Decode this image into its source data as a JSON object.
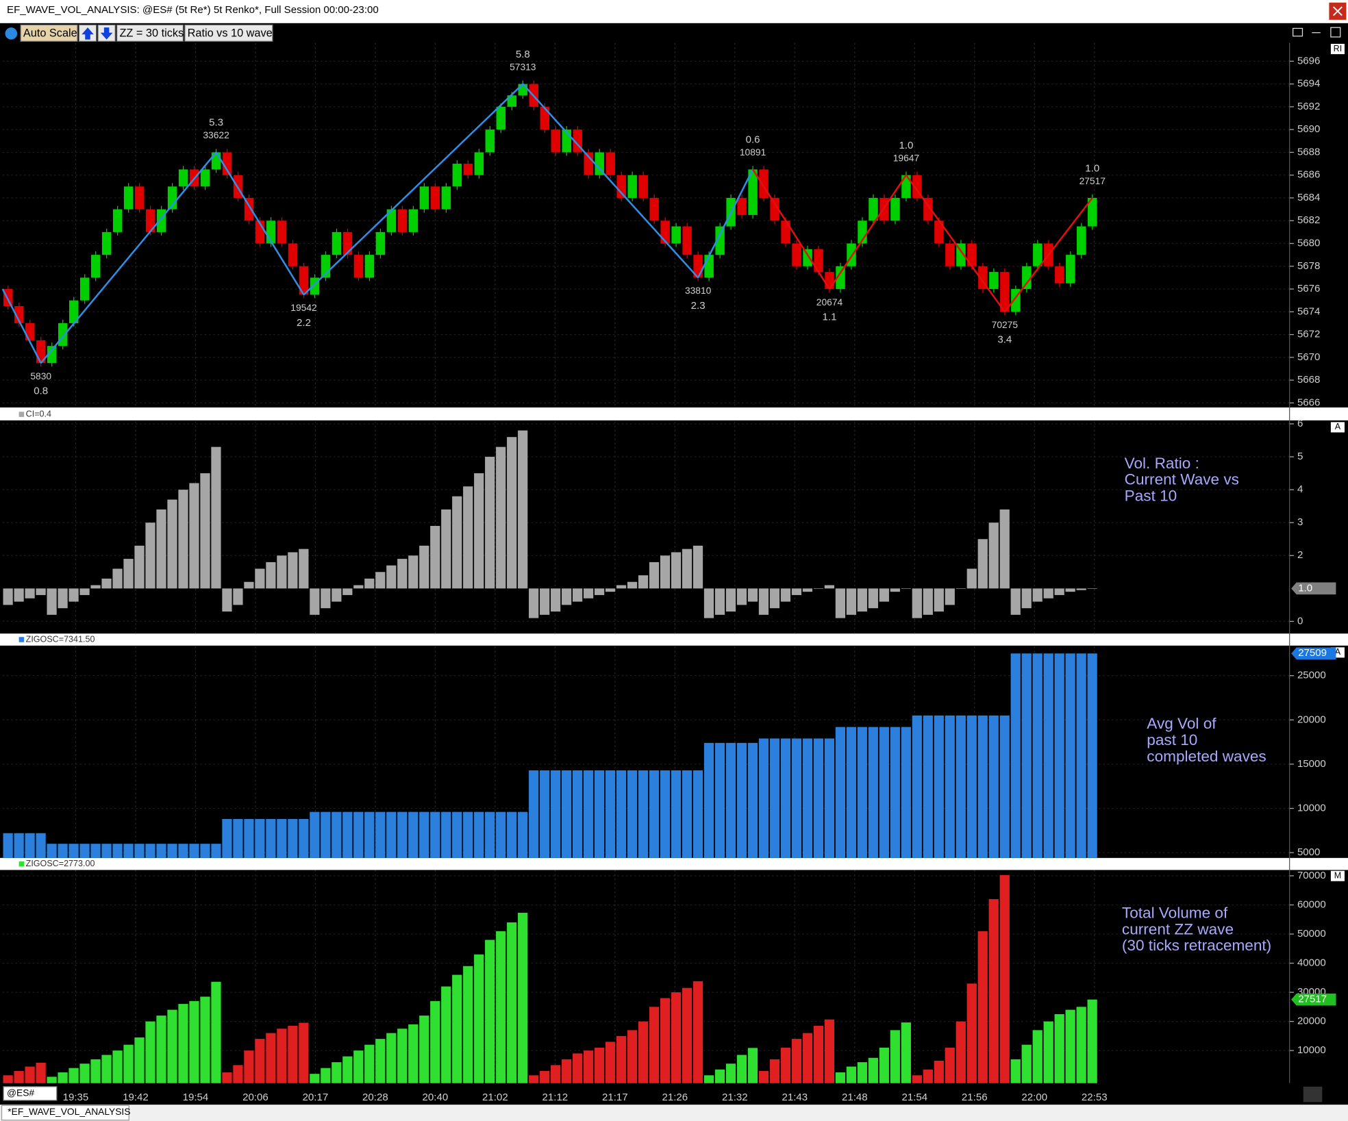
{
  "window": {
    "title": "EF_WAVE_VOL_ANALYSIS: @ES# (5t Re*) 5t Renko*, Full Session 00:00-23:00"
  },
  "toolbar": {
    "buttons": [
      "Auto Scale",
      "ZZ = 30 ticks",
      "Ratio vs 10 wave"
    ]
  },
  "footer": {
    "symbol": "@ES#",
    "tab": "*EF_WAVE_VOL_ANALYSIS"
  },
  "x_labels": [
    "19:35",
    "19:42",
    "19:54",
    "20:06",
    "20:17",
    "20:28",
    "20:40",
    "21:02",
    "21:12",
    "21:17",
    "21:26",
    "21:32",
    "21:43",
    "21:48",
    "21:54",
    "21:56",
    "22:00",
    "22:53"
  ],
  "chart_data": [
    {
      "type": "renko",
      "scale_mode": "RI",
      "up_color": "#00d000",
      "down_color": "#e00000",
      "ylim": [
        5665.6,
        5697.6
      ],
      "yticks": [
        5666,
        5668,
        5670,
        5672,
        5674,
        5676,
        5678,
        5680,
        5682,
        5684,
        5686,
        5688,
        5690,
        5692,
        5694,
        5696
      ],
      "open": 5676,
      "waves": [
        {
          "closes": [
            5674.5,
            5673,
            5671.5,
            5669.5
          ],
          "pivot": 5669.5,
          "volume_label": "5830",
          "ratio_label": "0.8",
          "zigzag_color": "#2f8fe8"
        },
        {
          "closes": [
            5671,
            5673,
            5675,
            5677,
            5679,
            5681,
            5683,
            5685,
            5683,
            5681,
            5683,
            5685,
            5686.5,
            5685,
            5686.5,
            5688
          ],
          "pivot": 5688,
          "volume_label": "33622",
          "ratio_label": "5.3",
          "zigzag_color": "#2f8fe8"
        },
        {
          "closes": [
            5686,
            5684,
            5682,
            5680,
            5682,
            5680,
            5678,
            5675.5
          ],
          "pivot": 5675.5,
          "volume_label": "19542",
          "ratio_label": "2.2",
          "zigzag_color": "#2f8fe8"
        },
        {
          "closes": [
            5677,
            5679,
            5681,
            5679,
            5677,
            5679,
            5681,
            5683,
            5681,
            5683,
            5685,
            5683,
            5685,
            5687,
            5686,
            5688,
            5690,
            5692,
            5693,
            5694
          ],
          "pivot": 5694,
          "volume_label": "57313",
          "ratio_label": "5.8",
          "zigzag_color": "#2f8fe8"
        },
        {
          "closes": [
            5692,
            5690,
            5688,
            5690,
            5688,
            5686,
            5688,
            5686,
            5684,
            5686,
            5684,
            5682,
            5680,
            5681.5,
            5679,
            5677
          ],
          "pivot": 5677,
          "volume_label": "33810",
          "ratio_label": "2.3",
          "zigzag_color": "#2f8fe8"
        },
        {
          "closes": [
            5679,
            5681.5,
            5684,
            5682.5,
            5686.5
          ],
          "pivot": 5686.5,
          "volume_label": "10891",
          "ratio_label": "0.6",
          "zigzag_color": "#2f8fe8"
        },
        {
          "closes": [
            5684,
            5682,
            5680,
            5678,
            5679.5,
            5677.5,
            5676
          ],
          "pivot": 5676,
          "volume_label": "20674",
          "ratio_label": "1.1",
          "zigzag_color": "#e01010"
        },
        {
          "closes": [
            5678,
            5680,
            5682,
            5684,
            5682,
            5684,
            5686
          ],
          "pivot": 5686,
          "volume_label": "19647",
          "ratio_label": "1.0",
          "zigzag_color": "#e01010"
        },
        {
          "closes": [
            5684,
            5682,
            5680,
            5678,
            5680,
            5678,
            5676,
            5677.5,
            5674
          ],
          "pivot": 5674,
          "volume_label": "70275",
          "ratio_label": "3.4",
          "zigzag_color": "#e01010"
        },
        {
          "closes": [
            5676,
            5678,
            5680,
            5678,
            5676.5,
            5679,
            5681.5,
            5684
          ],
          "pivot": 5684,
          "volume_label": "27517",
          "ratio_label": "1.0",
          "zigzag_color": "#e01010"
        }
      ]
    },
    {
      "type": "bar",
      "header": "CI=0.4",
      "scale_mode": "A",
      "note": [
        "Vol. Ratio :",
        "Current Wave vs",
        "Past 10"
      ],
      "ylim": [
        -0.37,
        6.08
      ],
      "yticks": [
        0,
        2,
        3,
        4,
        5,
        6
      ],
      "marker": {
        "value": 1,
        "label": "1.0"
      },
      "marker_color": "#808080",
      "baseline": "marker",
      "segments": [
        {
          "color": "#a6a6a6",
          "values": [
            0.5,
            0.6,
            0.7,
            0.8
          ]
        },
        {
          "color": "#a6a6a6",
          "values": [
            0.2,
            0.4,
            0.6,
            0.8,
            1.1,
            1.3,
            1.6,
            1.9,
            2.3,
            3.0,
            3.4,
            3.7,
            4.0,
            4.2,
            4.5,
            5.3
          ]
        },
        {
          "color": "#a6a6a6",
          "values": [
            0.3,
            0.5,
            1.2,
            1.6,
            1.8,
            2.0,
            2.1,
            2.2
          ]
        },
        {
          "color": "#a6a6a6",
          "values": [
            0.2,
            0.4,
            0.6,
            0.8,
            1.1,
            1.3,
            1.5,
            1.7,
            1.9,
            2.0,
            2.3,
            2.9,
            3.4,
            3.8,
            4.1,
            4.5,
            5.0,
            5.3,
            5.6,
            5.8
          ]
        },
        {
          "color": "#a6a6a6",
          "values": [
            0.1,
            0.2,
            0.3,
            0.5,
            0.6,
            0.7,
            0.8,
            0.9,
            1.1,
            1.2,
            1.4,
            1.8,
            2.0,
            2.1,
            2.2,
            2.3
          ]
        },
        {
          "color": "#a6a6a6",
          "values": [
            0.1,
            0.2,
            0.3,
            0.5,
            0.6
          ]
        },
        {
          "color": "#a6a6a6",
          "values": [
            0.2,
            0.4,
            0.6,
            0.8,
            0.9,
            1.0,
            1.1
          ]
        },
        {
          "color": "#a6a6a6",
          "values": [
            0.1,
            0.2,
            0.3,
            0.4,
            0.6,
            0.9,
            1.0
          ]
        },
        {
          "color": "#a6a6a6",
          "values": [
            0.1,
            0.2,
            0.3,
            0.5,
            1.0,
            1.6,
            2.5,
            3.0,
            3.4
          ]
        },
        {
          "color": "#a6a6a6",
          "values": [
            0.2,
            0.4,
            0.6,
            0.7,
            0.8,
            0.9,
            0.95,
            1.0
          ]
        }
      ]
    },
    {
      "type": "bar",
      "header": "ZIGOSC=7341.50",
      "scale_mode": "A",
      "note": [
        "Avg Vol of",
        "past 10",
        "completed waves"
      ],
      "ylim": [
        4400,
        28300
      ],
      "yticks": [
        5000,
        10000,
        15000,
        20000,
        25000
      ],
      "marker": 27509,
      "marker_color": "#1a78e0",
      "segments": [
        {
          "color": "#2a80dc",
          "values": [
            7200,
            7200,
            7200,
            7200
          ]
        },
        {
          "color": "#2a80dc",
          "values": [
            6000,
            6000,
            6000,
            6000,
            6000,
            6000,
            6000,
            6000,
            6000,
            6000,
            6000,
            6000,
            6000,
            6000,
            6000,
            6000
          ]
        },
        {
          "color": "#2a80dc",
          "values": [
            8800,
            8800,
            8800,
            8800,
            8800,
            8800,
            8800,
            8800
          ]
        },
        {
          "color": "#2a80dc",
          "values": [
            9600,
            9600,
            9600,
            9600,
            9600,
            9600,
            9600,
            9600,
            9600,
            9600,
            9600,
            9600,
            9600,
            9600,
            9600,
            9600,
            9600,
            9600,
            9600,
            9600
          ]
        },
        {
          "color": "#2a80dc",
          "values": [
            14300,
            14300,
            14300,
            14300,
            14300,
            14300,
            14300,
            14300,
            14300,
            14300,
            14300,
            14300,
            14300,
            14300,
            14300,
            14300
          ]
        },
        {
          "color": "#2a80dc",
          "values": [
            17400,
            17400,
            17400,
            17400,
            17400
          ]
        },
        {
          "color": "#2a80dc",
          "values": [
            17900,
            17900,
            17900,
            17900,
            17900,
            17900,
            17900
          ]
        },
        {
          "color": "#2a80dc",
          "values": [
            19200,
            19200,
            19200,
            19200,
            19200,
            19200,
            19200
          ]
        },
        {
          "color": "#2a80dc",
          "values": [
            20500,
            20500,
            20500,
            20500,
            20500,
            20500,
            20500,
            20500,
            20500
          ]
        },
        {
          "color": "#2a80dc",
          "values": [
            27509,
            27509,
            27509,
            27509,
            27509,
            27509,
            27509,
            27509
          ]
        }
      ]
    },
    {
      "type": "bar",
      "header": "ZIGOSC=2773.00",
      "scale_mode": "M",
      "note": [
        "Total Volume of",
        "current ZZ wave",
        "(30 ticks retracement)"
      ],
      "ylim": [
        -1200,
        72000
      ],
      "yticks": [
        10000,
        20000,
        30000,
        40000,
        50000,
        60000,
        70000
      ],
      "marker": 27517,
      "marker_color": "#20c020",
      "segments": [
        {
          "color": "#e02020",
          "values": [
            1500,
            3000,
            4500,
            5830
          ]
        },
        {
          "color": "#30e030",
          "values": [
            1000,
            2500,
            4000,
            5500,
            7000,
            8500,
            10000,
            12000,
            14500,
            20000,
            22000,
            24000,
            26000,
            27000,
            28500,
            33622
          ]
        },
        {
          "color": "#e02020",
          "values": [
            2500,
            5000,
            10000,
            14000,
            16000,
            17500,
            18500,
            19542
          ]
        },
        {
          "color": "#30e030",
          "values": [
            2000,
            4000,
            6000,
            8000,
            10000,
            12000,
            14000,
            16000,
            17500,
            19000,
            22000,
            27000,
            32000,
            36000,
            39000,
            43000,
            48000,
            51000,
            54000,
            57313
          ]
        },
        {
          "color": "#e02020",
          "values": [
            1500,
            3000,
            5000,
            7000,
            9000,
            10000,
            11000,
            13000,
            15000,
            17000,
            20000,
            25000,
            28000,
            30000,
            31500,
            33810
          ]
        },
        {
          "color": "#30e030",
          "values": [
            1500,
            3500,
            5500,
            8500,
            10891
          ]
        },
        {
          "color": "#e02020",
          "values": [
            3000,
            7000,
            11000,
            14000,
            16000,
            18500,
            20674
          ]
        },
        {
          "color": "#30e030",
          "values": [
            2500,
            4500,
            6000,
            7500,
            11000,
            17000,
            19647
          ]
        },
        {
          "color": "#e02020",
          "values": [
            1500,
            3500,
            6500,
            11000,
            20000,
            33000,
            51000,
            62000,
            70275
          ]
        },
        {
          "color": "#30e030",
          "values": [
            7000,
            12000,
            17000,
            20000,
            22500,
            24000,
            25000,
            27517
          ]
        }
      ]
    }
  ]
}
